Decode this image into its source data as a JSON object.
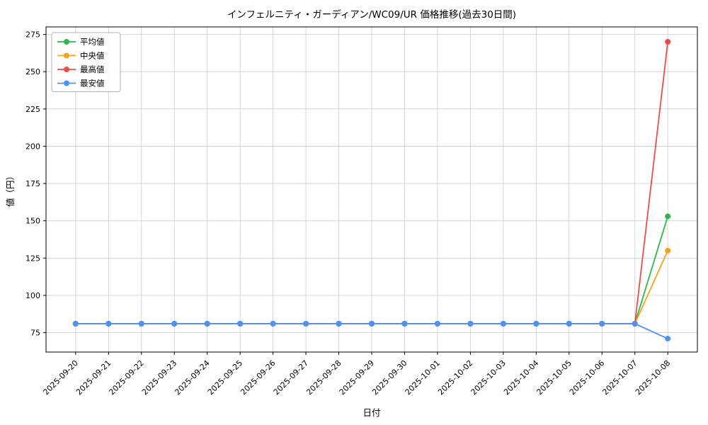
{
  "chart_data": {
    "type": "line",
    "title": "インフェルニティ・ガーディアン/WC09/UR 価格推移(過去30日間)",
    "xlabel": "日付",
    "ylabel": "値（円）",
    "categories": [
      "2025-09-20",
      "2025-09-21",
      "2025-09-22",
      "2025-09-23",
      "2025-09-24",
      "2025-09-25",
      "2025-09-26",
      "2025-09-27",
      "2025-09-28",
      "2025-09-29",
      "2025-09-30",
      "2025-10-01",
      "2025-10-02",
      "2025-10-03",
      "2025-10-04",
      "2025-10-05",
      "2025-10-06",
      "2025-10-07",
      "2025-10-08"
    ],
    "yticks": [
      75,
      100,
      125,
      150,
      175,
      200,
      225,
      250,
      275
    ],
    "ylim": [
      62,
      280
    ],
    "grid": true,
    "grid_color": "#cccccc",
    "legend_position": "upper-left",
    "series": [
      {
        "name": "平均値",
        "color": "#2db84a",
        "values": [
          81,
          81,
          81,
          81,
          81,
          81,
          81,
          81,
          81,
          81,
          81,
          81,
          81,
          81,
          81,
          81,
          81,
          81,
          153
        ]
      },
      {
        "name": "中央値",
        "color": "#f5a31a",
        "values": [
          81,
          81,
          81,
          81,
          81,
          81,
          81,
          81,
          81,
          81,
          81,
          81,
          81,
          81,
          81,
          81,
          81,
          81,
          130
        ]
      },
      {
        "name": "最高値",
        "color": "#ef4b46",
        "values": [
          81,
          81,
          81,
          81,
          81,
          81,
          81,
          81,
          81,
          81,
          81,
          81,
          81,
          81,
          81,
          81,
          81,
          81,
          270
        ]
      },
      {
        "name": "最安値",
        "color": "#4b94f5",
        "values": [
          81,
          81,
          81,
          81,
          81,
          81,
          81,
          81,
          81,
          81,
          81,
          81,
          81,
          81,
          81,
          81,
          81,
          81,
          71
        ]
      }
    ]
  }
}
